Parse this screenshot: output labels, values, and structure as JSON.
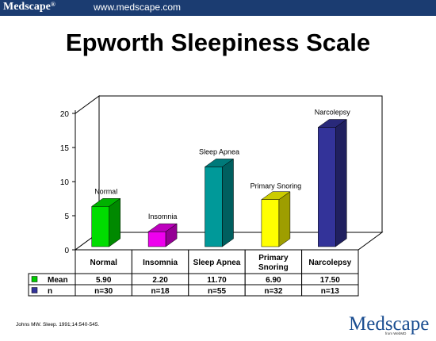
{
  "header": {
    "brand": "Medscape",
    "registered": "®",
    "url": "www.medscape.com"
  },
  "title": "Epworth Sleepiness Scale",
  "chart_data": {
    "type": "bar",
    "subtype": "3d-bar",
    "categories": [
      "Normal",
      "Insomnia",
      "Sleep Apnea",
      "Primary Snoring",
      "Narcolepsy"
    ],
    "values": [
      5.9,
      2.2,
      11.7,
      6.9,
      17.5
    ],
    "bar_labels": [
      "Normal",
      "Insomnia",
      "Sleep Apnea",
      "Primary Snoring",
      "Narcolepsy"
    ],
    "colors": [
      "#00dd00",
      "#ee00ee",
      "#009999",
      "#ffff00",
      "#333399"
    ],
    "yticks": [
      0,
      5,
      10,
      15,
      20
    ],
    "ylim": [
      0,
      20
    ],
    "grid": false,
    "table": {
      "column_headers": [
        "Normal",
        "Insomnia",
        "Sleep Apnea",
        "Primary Snoring",
        "Narcolepsy"
      ],
      "rows": [
        {
          "label": "Mean",
          "color": "#00cc00",
          "cells": [
            "5.90",
            "2.20",
            "11.70",
            "6.90",
            "17.50"
          ]
        },
        {
          "label": "n",
          "color": "#333399",
          "cells": [
            "n=30",
            "n=18",
            "n=55",
            "n=32",
            "n=13"
          ]
        }
      ]
    }
  },
  "footer": {
    "citation": "Johns MW. Sleep. 1991;14:540-545.",
    "logo": "Medscape",
    "logo_sub": "from WebMD"
  }
}
